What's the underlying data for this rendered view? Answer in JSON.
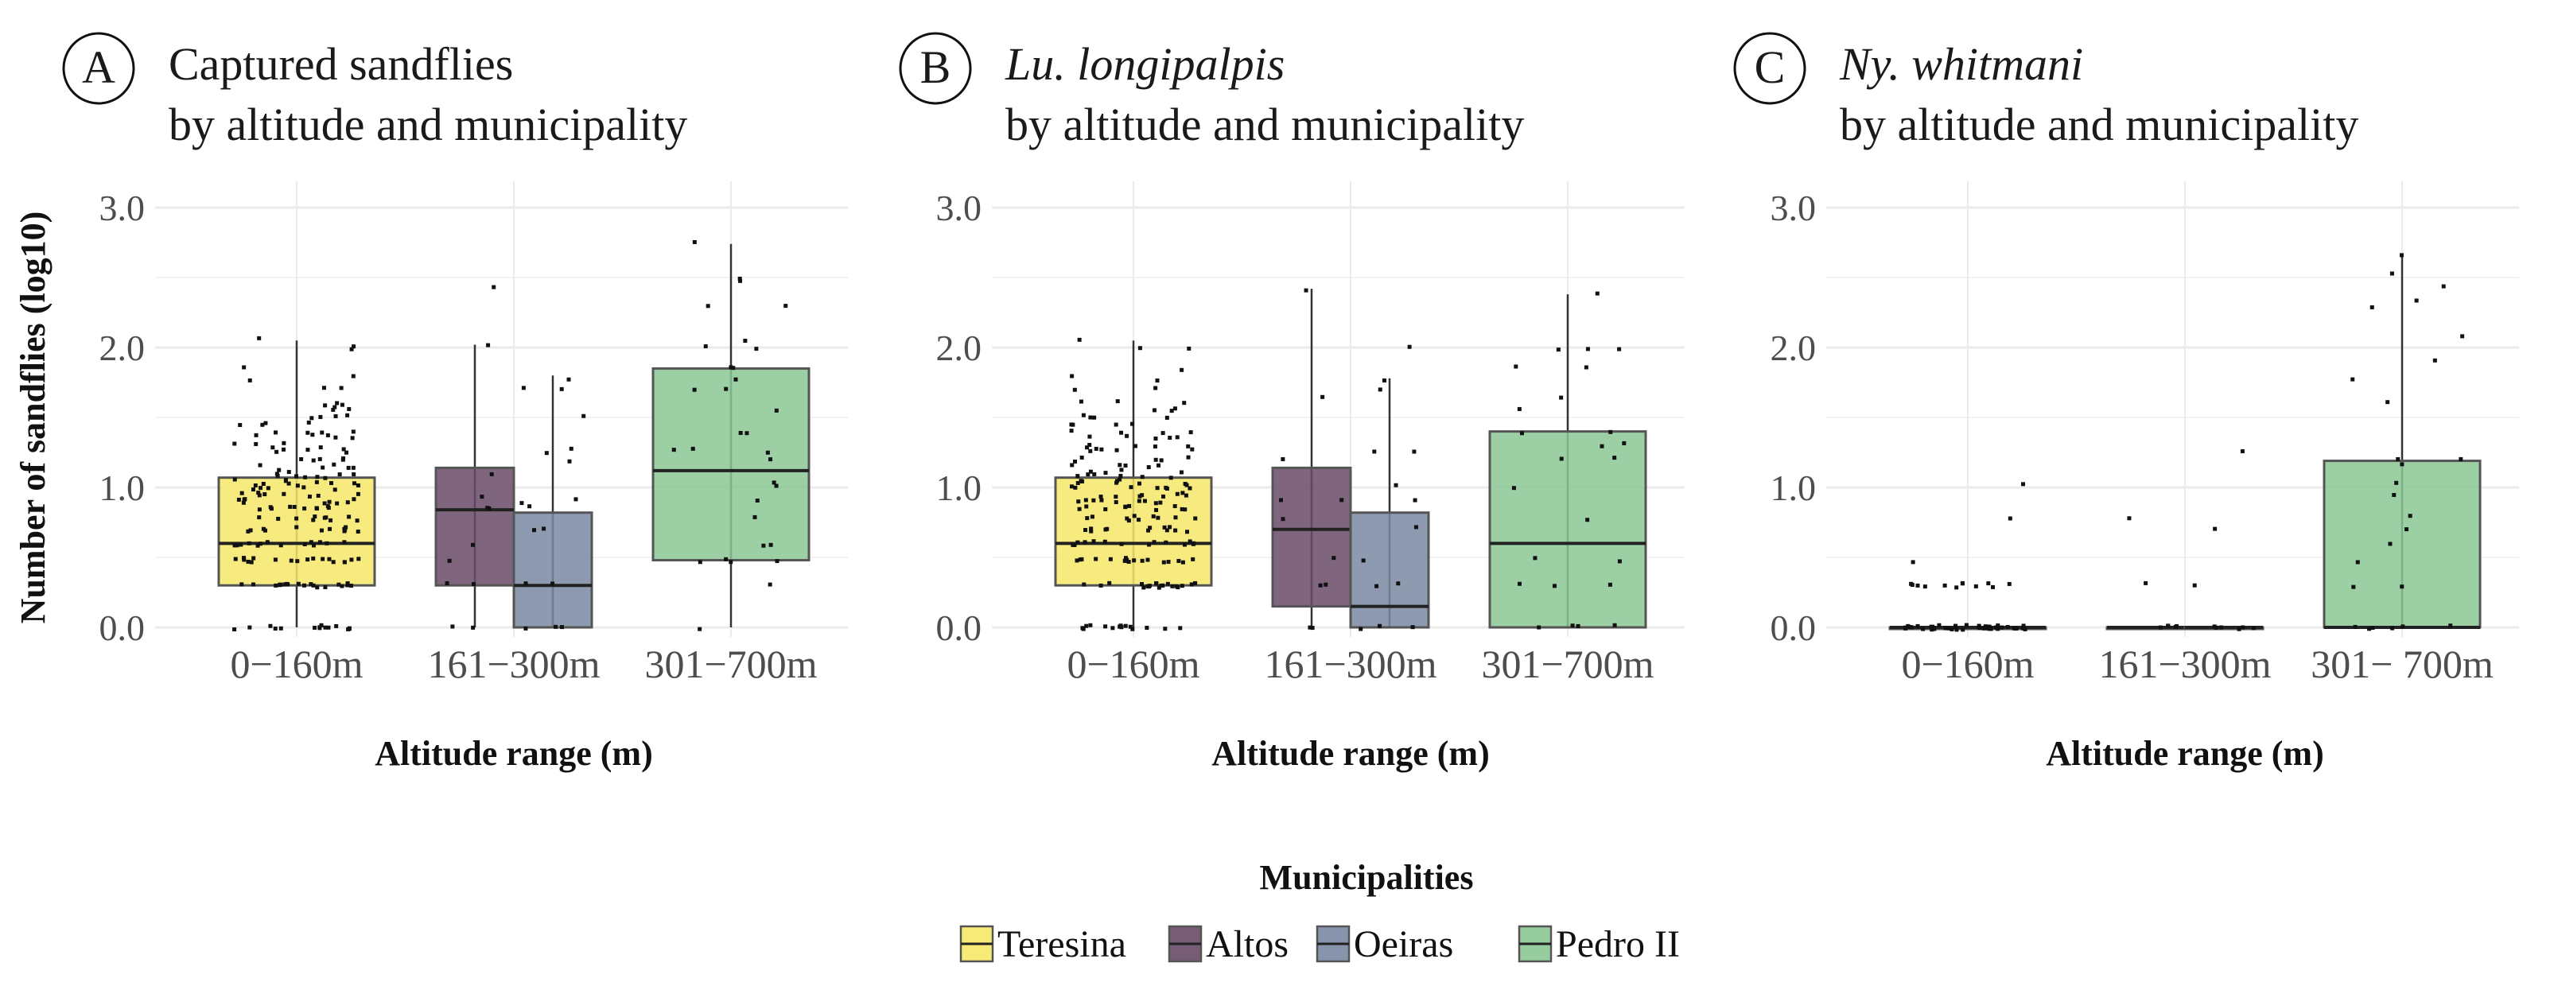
{
  "chart_data": [
    {
      "type": "box",
      "panel_letter": "A",
      "title_line1": "Captured sandflies",
      "title_line1_italic": false,
      "title_line2": "by altitude and municipality",
      "xlabel": "Altitude range (m)",
      "ylabel": "Number of sandflies (log10)",
      "ylim": [
        0,
        3
      ],
      "yticks": [
        "0.0",
        "1.0",
        "2.0",
        "3.0"
      ],
      "categories": [
        "0−160m",
        "161−300m",
        "301−700m"
      ],
      "grid": true,
      "boxes": [
        {
          "category": 0,
          "group": "Teresina",
          "dodge": "single",
          "q1": 0.3,
          "median": 0.6,
          "q3": 1.07,
          "low": 0,
          "high": 2.05,
          "levels": [
            [
              0,
              15
            ],
            [
              0.3,
              20
            ],
            [
              0.48,
              18
            ],
            [
              0.6,
              14
            ],
            [
              0.7,
              12
            ],
            [
              0.78,
              10
            ],
            [
              0.85,
              10
            ],
            [
              0.9,
              9
            ],
            [
              0.95,
              8
            ],
            [
              1.0,
              8
            ],
            [
              1.04,
              8
            ],
            [
              1.08,
              5
            ],
            [
              1.11,
              5
            ],
            [
              1.15,
              5
            ],
            [
              1.2,
              5
            ],
            [
              1.26,
              5
            ],
            [
              1.3,
              5
            ],
            [
              1.36,
              5
            ],
            [
              1.4,
              4
            ],
            [
              1.45,
              4
            ],
            [
              1.5,
              4
            ],
            [
              1.56,
              3
            ],
            [
              1.6,
              3
            ],
            [
              1.7,
              2
            ],
            [
              1.78,
              2
            ],
            [
              1.85,
              1
            ],
            [
              2.0,
              2
            ],
            [
              2.05,
              1
            ]
          ]
        },
        {
          "category": 1,
          "group": "Altos",
          "dodge": "left",
          "q1": 0.3,
          "median": 0.84,
          "q3": 1.14,
          "low": 0,
          "high": 2.02,
          "levels": [
            [
              0,
              2
            ],
            [
              0.3,
              2
            ],
            [
              0.48,
              1
            ],
            [
              0.6,
              1
            ],
            [
              0.85,
              2
            ],
            [
              0.95,
              1
            ],
            [
              1.11,
              1
            ],
            [
              2.02,
              1
            ],
            [
              2.42,
              1
            ]
          ]
        },
        {
          "category": 1,
          "group": "Oeiras",
          "dodge": "right",
          "q1": 0,
          "median": 0.3,
          "q3": 0.82,
          "low": 0,
          "high": 1.8,
          "levels": [
            [
              0,
              3
            ],
            [
              0.3,
              2
            ],
            [
              0.7,
              2
            ],
            [
              0.85,
              1
            ],
            [
              0.9,
              2
            ],
            [
              1.18,
              1
            ],
            [
              1.26,
              2
            ],
            [
              1.5,
              1
            ],
            [
              1.7,
              2
            ],
            [
              1.78,
              1
            ]
          ]
        },
        {
          "category": 2,
          "group": "Pedro II",
          "dodge": "single",
          "q1": 0.48,
          "median": 1.12,
          "q3": 1.85,
          "low": 0,
          "high": 2.74,
          "levels": [
            [
              0,
              1
            ],
            [
              0.3,
              1
            ],
            [
              0.48,
              4
            ],
            [
              0.6,
              2
            ],
            [
              0.78,
              1
            ],
            [
              0.9,
              1
            ],
            [
              1.0,
              1
            ],
            [
              1.04,
              1
            ],
            [
              1.2,
              1
            ],
            [
              1.26,
              3
            ],
            [
              1.4,
              2
            ],
            [
              1.56,
              1
            ],
            [
              1.7,
              2
            ],
            [
              1.78,
              1
            ],
            [
              1.85,
              2
            ],
            [
              2.0,
              2
            ],
            [
              2.05,
              1
            ],
            [
              2.3,
              2
            ],
            [
              2.48,
              2
            ],
            [
              2.74,
              1
            ]
          ]
        }
      ]
    },
    {
      "type": "box",
      "panel_letter": "B",
      "title_line1": "Lu. longipalpis",
      "title_line1_italic": true,
      "title_line2": "by altitude and municipality",
      "xlabel": "Altitude range (m)",
      "ylim": [
        0,
        3
      ],
      "yticks": [
        "0.0",
        "1.0",
        "2.0",
        "3.0"
      ],
      "categories": [
        "0−160m",
        "161−300m",
        "301−700m"
      ],
      "grid": true,
      "boxes": [
        {
          "category": 0,
          "group": "Teresina",
          "dodge": "single",
          "q1": 0.3,
          "median": 0.6,
          "q3": 1.07,
          "low": 0,
          "high": 2.05,
          "levels": [
            [
              0,
              15
            ],
            [
              0.3,
              20
            ],
            [
              0.48,
              18
            ],
            [
              0.6,
              14
            ],
            [
              0.7,
              12
            ],
            [
              0.78,
              10
            ],
            [
              0.85,
              10
            ],
            [
              0.9,
              9
            ],
            [
              0.95,
              8
            ],
            [
              1.0,
              8
            ],
            [
              1.04,
              8
            ],
            [
              1.08,
              5
            ],
            [
              1.11,
              5
            ],
            [
              1.15,
              5
            ],
            [
              1.2,
              5
            ],
            [
              1.26,
              5
            ],
            [
              1.3,
              5
            ],
            [
              1.36,
              5
            ],
            [
              1.4,
              4
            ],
            [
              1.45,
              4
            ],
            [
              1.5,
              4
            ],
            [
              1.56,
              3
            ],
            [
              1.6,
              3
            ],
            [
              1.7,
              2
            ],
            [
              1.78,
              2
            ],
            [
              1.85,
              1
            ],
            [
              2.0,
              2
            ],
            [
              2.05,
              1
            ]
          ]
        },
        {
          "category": 1,
          "group": "Altos",
          "dodge": "left",
          "q1": 0.15,
          "median": 0.7,
          "q3": 1.14,
          "low": 0,
          "high": 2.42,
          "levels": [
            [
              0,
              2
            ],
            [
              0.3,
              2
            ],
            [
              0.48,
              1
            ],
            [
              0.78,
              1
            ],
            [
              0.9,
              2
            ],
            [
              1.2,
              1
            ],
            [
              1.65,
              1
            ],
            [
              2.42,
              1
            ]
          ]
        },
        {
          "category": 1,
          "group": "Oeiras",
          "dodge": "right",
          "q1": 0,
          "median": 0.15,
          "q3": 0.82,
          "low": 0,
          "high": 1.78,
          "levels": [
            [
              0,
              3
            ],
            [
              0.3,
              2
            ],
            [
              0.48,
              1
            ],
            [
              0.7,
              1
            ],
            [
              0.9,
              1
            ],
            [
              1.0,
              1
            ],
            [
              1.26,
              2
            ],
            [
              1.7,
              1
            ],
            [
              1.78,
              1
            ],
            [
              2.02,
              1
            ]
          ]
        },
        {
          "category": 2,
          "group": "Pedro II",
          "dodge": "single",
          "q1": 0,
          "median": 0.6,
          "q3": 1.4,
          "low": 0,
          "high": 2.38,
          "levels": [
            [
              0,
              4
            ],
            [
              0.3,
              3
            ],
            [
              0.48,
              2
            ],
            [
              0.78,
              1
            ],
            [
              1.0,
              1
            ],
            [
              1.2,
              2
            ],
            [
              1.3,
              2
            ],
            [
              1.4,
              2
            ],
            [
              1.56,
              1
            ],
            [
              1.65,
              1
            ],
            [
              1.85,
              2
            ],
            [
              2.0,
              3
            ],
            [
              2.38,
              1
            ]
          ]
        }
      ]
    },
    {
      "type": "box",
      "panel_letter": "C",
      "title_line1": "Ny. whitmani",
      "title_line1_italic": true,
      "title_line2": "by altitude and municipality",
      "xlabel": "Altitude range (m)",
      "ylim": [
        0,
        3
      ],
      "yticks": [
        "0.0",
        "1.0",
        "2.0",
        "3.0"
      ],
      "categories": [
        "0−160m",
        "161−300m",
        "301− 700m"
      ],
      "grid": true,
      "boxes": [
        {
          "category": 0,
          "group": "Teresina",
          "dodge": "single",
          "q1": 0,
          "median": 0,
          "q3": 0,
          "low": 0,
          "high": 0,
          "levels": [
            [
              0,
              40
            ],
            [
              0.3,
              12
            ],
            [
              0.48,
              1
            ],
            [
              0.78,
              1
            ],
            [
              1.04,
              1
            ]
          ]
        },
        {
          "category": 1,
          "group": "Altos",
          "dodge": "left",
          "q1": 0,
          "median": 0,
          "q3": 0,
          "low": 0,
          "high": 0,
          "levels": [
            [
              0,
              5
            ],
            [
              0.3,
              1
            ],
            [
              0.78,
              1
            ]
          ]
        },
        {
          "category": 1,
          "group": "Oeiras",
          "dodge": "right",
          "q1": 0,
          "median": 0,
          "q3": 0,
          "low": 0,
          "high": 0,
          "levels": [
            [
              0,
              6
            ],
            [
              0.3,
              1
            ],
            [
              0.7,
              1
            ],
            [
              1.26,
              1
            ]
          ]
        },
        {
          "category": 2,
          "group": "Pedro II",
          "dodge": "single",
          "q1": 0,
          "median": 0,
          "q3": 1.19,
          "low": 0,
          "high": 2.65,
          "levels": [
            [
              0,
              6
            ],
            [
              0.3,
              2
            ],
            [
              0.48,
              1
            ],
            [
              0.6,
              1
            ],
            [
              0.7,
              1
            ],
            [
              0.78,
              1
            ],
            [
              0.96,
              1
            ],
            [
              1.04,
              1
            ],
            [
              1.15,
              1
            ],
            [
              1.2,
              2
            ],
            [
              1.6,
              1
            ],
            [
              1.77,
              1
            ],
            [
              1.9,
              1
            ],
            [
              2.07,
              1
            ],
            [
              2.3,
              1
            ],
            [
              2.35,
              1
            ],
            [
              2.45,
              1
            ],
            [
              2.52,
              1
            ],
            [
              2.65,
              1
            ]
          ]
        }
      ]
    }
  ],
  "legend": {
    "title": "Municipalities",
    "placement": "bottom",
    "items": [
      {
        "label": "Teresina",
        "color": "#f6e868"
      },
      {
        "label": "Altos",
        "color": "#684a66"
      },
      {
        "label": "Oeiras",
        "color": "#7a88a2"
      },
      {
        "label": "Pedro II",
        "color": "#8bc794"
      }
    ]
  }
}
